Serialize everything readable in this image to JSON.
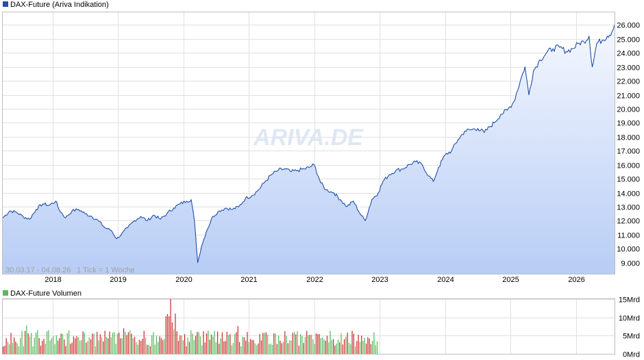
{
  "colors": {
    "price_line": "#1f4fa8",
    "price_fill_top": "#f4f7fe",
    "price_fill_bottom": "#b8cdf5",
    "vol_up": "#5cb85c",
    "vol_down": "#c9302c",
    "legend_price": "#1f4fa8",
    "legend_volume": "#5cb85c",
    "watermark": "#dfe7f3"
  },
  "chart_data": [
    {
      "type": "area",
      "legend": "DAX-Future (Ariva Indikation)",
      "range_label": "30.03.17 - 04.08.26",
      "tick_label": "1 Tick = 1 Woche",
      "watermark": "ARIVA.DE",
      "ylim": [
        8200,
        26900
      ],
      "y_ticks": [
        9000,
        10000,
        11000,
        12000,
        13000,
        14000,
        15000,
        16000,
        17000,
        18000,
        19000,
        20000,
        21000,
        22000,
        23000,
        24000,
        25000,
        26000
      ],
      "y_tick_labels": [
        "9.000",
        "10.000",
        "11.000",
        "12.000",
        "13.000",
        "14.000",
        "15.000",
        "16.000",
        "17.000",
        "18.000",
        "19.000",
        "20.000",
        "21.000",
        "22.000",
        "23.000",
        "24.000",
        "25.000",
        "26.000"
      ],
      "xlim": [
        2017.24,
        2026.59
      ],
      "x_ticks": [
        2018,
        2019,
        2020,
        2021,
        2022,
        2023,
        2024,
        2025,
        2026
      ],
      "x_tick_labels": [
        "2018",
        "2019",
        "2020",
        "2021",
        "2022",
        "2023",
        "2024",
        "2025",
        "2026"
      ],
      "grid": true,
      "legend_position": "top-left",
      "series": [
        {
          "x": [
            2017.24,
            2017.35,
            2017.45,
            2017.55,
            2017.65,
            2017.75,
            2017.85,
            2017.95,
            2018.05,
            2018.1,
            2018.2,
            2018.3,
            2018.4,
            2018.5,
            2018.6,
            2018.7,
            2018.8,
            2018.9,
            2018.98,
            2019.05,
            2019.15,
            2019.25,
            2019.35,
            2019.45,
            2019.55,
            2019.65,
            2019.75,
            2019.85,
            2019.95,
            2020.05,
            2020.12,
            2020.17,
            2020.22,
            2020.28,
            2020.35,
            2020.45,
            2020.55,
            2020.65,
            2020.75,
            2020.85,
            2020.95,
            2021.05,
            2021.15,
            2021.25,
            2021.35,
            2021.45,
            2021.55,
            2021.65,
            2021.75,
            2021.85,
            2021.92,
            2022.0,
            2022.1,
            2022.18,
            2022.3,
            2022.4,
            2022.5,
            2022.6,
            2022.7,
            2022.78,
            2022.88,
            2022.98,
            2023.05,
            2023.15,
            2023.25,
            2023.35,
            2023.45,
            2023.55,
            2023.65,
            2023.75,
            2023.82,
            2023.9,
            2024.0,
            2024.1,
            2024.2,
            2024.3,
            2024.4,
            2024.5,
            2024.6,
            2024.68,
            2024.75,
            2024.85,
            2024.95,
            2025.05,
            2025.15,
            2025.22,
            2025.28,
            2025.35,
            2025.45,
            2025.55,
            2025.65,
            2025.75,
            2025.85,
            2025.95,
            2026.05,
            2026.12,
            2026.2,
            2026.25,
            2026.32,
            2026.4,
            2026.48,
            2026.55,
            2026.59
          ],
          "y": [
            12200,
            12700,
            12600,
            12300,
            12100,
            12800,
            13200,
            13100,
            13400,
            12800,
            12200,
            12700,
            12800,
            12500,
            12300,
            12000,
            11500,
            11300,
            10700,
            11000,
            11500,
            12000,
            12300,
            12000,
            12400,
            12100,
            12500,
            12900,
            13200,
            13400,
            13500,
            12000,
            9000,
            10200,
            11200,
            12300,
            12700,
            12900,
            12800,
            13000,
            13600,
            13800,
            14200,
            14800,
            15300,
            15600,
            15700,
            15500,
            15600,
            15700,
            15800,
            16000,
            14700,
            14200,
            14000,
            13500,
            13000,
            13400,
            12500,
            12000,
            13500,
            14000,
            14800,
            15300,
            15600,
            15700,
            16000,
            16200,
            16000,
            15200,
            14800,
            15800,
            16700,
            17000,
            17800,
            18400,
            18500,
            18600,
            18300,
            18700,
            19000,
            19600,
            19900,
            20500,
            22000,
            23000,
            21000,
            22700,
            23500,
            24000,
            24300,
            24400,
            24100,
            24300,
            24700,
            24800,
            25200,
            23000,
            24700,
            24900,
            25200,
            25500,
            26000
          ]
        }
      ]
    },
    {
      "type": "bar",
      "legend": "DAX-Future Volumen",
      "ylim": [
        0,
        15
      ],
      "y_ticks": [
        0,
        5,
        10,
        15
      ],
      "y_tick_labels": [
        "0Mrd",
        "5Mrd",
        "10Mrd",
        "15Mrd"
      ],
      "volume_range": [
        2017.24,
        2022.98
      ],
      "bar_count": 240,
      "volume_min": 2.0,
      "volume_max": 15.0
    }
  ]
}
